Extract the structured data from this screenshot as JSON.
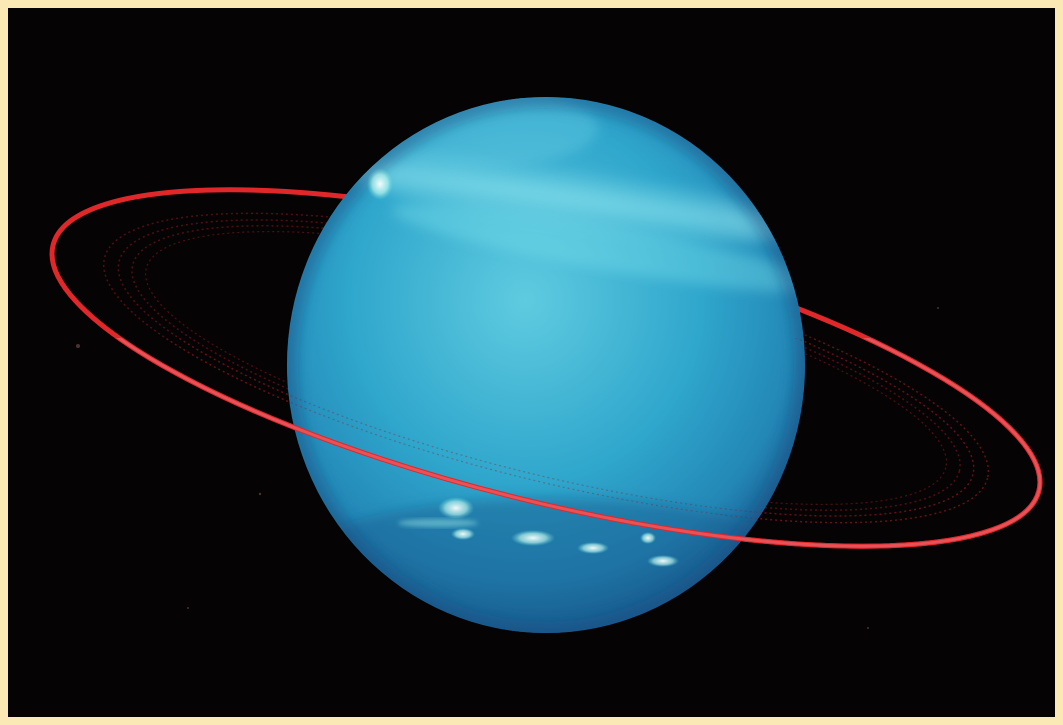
{
  "image": {
    "subject": "uranus-with-rings",
    "colors": {
      "frame": "#fbe9b5",
      "space": "#060304",
      "planet_light": "#5cc8dc",
      "planet_mid": "#2aa3c8",
      "planet_dark": "#1c6f9e",
      "ring": "#e0282a",
      "ring_faint": "#8c1a1c",
      "cloud_highlight": "#d9fff6"
    }
  }
}
